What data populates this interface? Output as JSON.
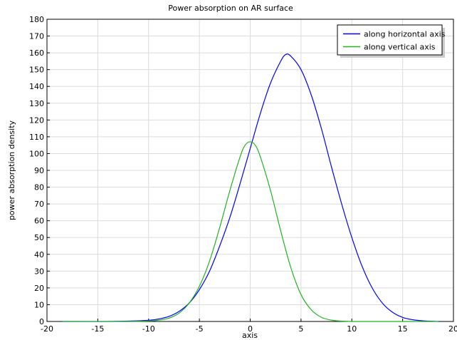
{
  "chart_data": {
    "type": "line",
    "title": "Power absorption on AR surface",
    "xlabel": "axis",
    "ylabel": "power absorption density",
    "xlim": [
      -20,
      20
    ],
    "ylim": [
      0,
      180
    ],
    "x_ticks": [
      -20,
      -15,
      -10,
      -5,
      0,
      5,
      10,
      15,
      20
    ],
    "y_ticks": [
      0,
      10,
      20,
      30,
      40,
      50,
      60,
      70,
      80,
      90,
      100,
      110,
      120,
      130,
      140,
      150,
      160,
      170,
      180
    ],
    "grid": true,
    "legend_position": "top-right",
    "series": [
      {
        "name": "along horizontal axis",
        "color": "#0000ff",
        "x": [
          -18.5,
          -16,
          -14,
          -12,
          -10,
          -9,
          -8,
          -7,
          -6,
          -5,
          -4,
          -3,
          -2,
          -1,
          0,
          1,
          2,
          3,
          3.5,
          4,
          5,
          6,
          7,
          8,
          9,
          10,
          11,
          12,
          13,
          14,
          15,
          16,
          17,
          18.5
        ],
        "y": [
          0,
          0,
          0,
          0.2,
          0.7,
          1.5,
          3,
          6,
          11,
          19,
          30,
          45,
          62,
          82,
          103,
          124,
          142,
          155,
          159,
          158,
          150,
          135,
          115,
          92,
          70,
          50,
          33,
          20,
          11,
          5.5,
          2.4,
          1,
          0.4,
          0
        ]
      },
      {
        "name": "along vertical axis",
        "color": "#1fb51f",
        "x": [
          -18.5,
          -12,
          -10,
          -9,
          -8,
          -7,
          -6,
          -5,
          -4,
          -3,
          -2,
          -1,
          -0.5,
          0,
          0.5,
          1,
          2,
          3,
          4,
          5,
          6,
          7,
          8,
          9,
          10,
          12,
          15,
          18.5
        ],
        "y": [
          0,
          0,
          0.3,
          0.8,
          2,
          5,
          11,
          21,
          36,
          56,
          78,
          98,
          105,
          107,
          105,
          98,
          78,
          54,
          32,
          16,
          7,
          2.5,
          0.8,
          0.2,
          0,
          0,
          0,
          0
        ]
      }
    ]
  }
}
